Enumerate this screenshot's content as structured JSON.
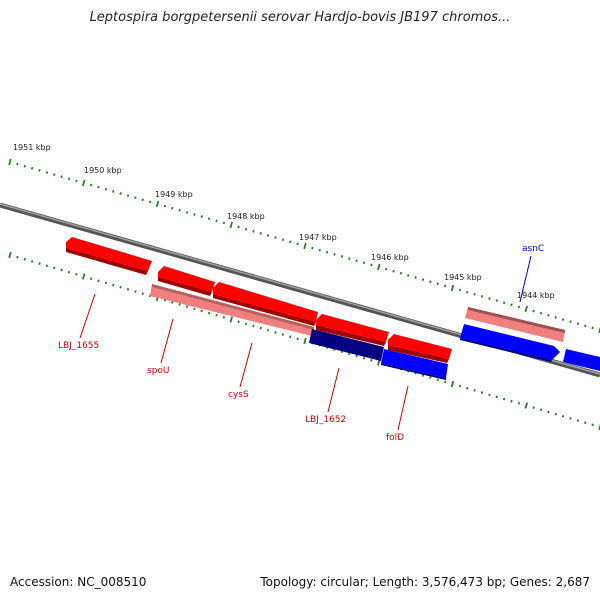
{
  "title": "Leptospira borgpetersenii serovar Hardjo-bovis JB197 chromos...",
  "footer": {
    "accession": "Accession: NC_008510",
    "stats": "Topology: circular; Length: 3,576,473 bp; Genes: 2,687"
  },
  "colors": {
    "backbone": "#808080",
    "ticks": "#2a7a2a",
    "forward_gene": "#ff0000",
    "forward_gene_light": "#f08080",
    "reverse_gene": "#0000ff",
    "reverse_gene_dark": "#000080",
    "label_forward": "#cc0000",
    "label_reverse": "#0000cc"
  },
  "kbp_labels": [
    "1951 kbp",
    "1950 kbp",
    "1949 kbp",
    "1948 kbp",
    "1947 kbp",
    "1946 kbp",
    "1945 kbp",
    "1944 kbp"
  ],
  "gene_labels": [
    {
      "name": "LBJ_1655",
      "strand": "forward"
    },
    {
      "name": "spoU",
      "strand": "forward"
    },
    {
      "name": "cysS",
      "strand": "forward"
    },
    {
      "name": "LBJ_1652",
      "strand": "forward"
    },
    {
      "name": "folD",
      "strand": "forward"
    },
    {
      "name": "asnC",
      "strand": "reverse"
    }
  ]
}
